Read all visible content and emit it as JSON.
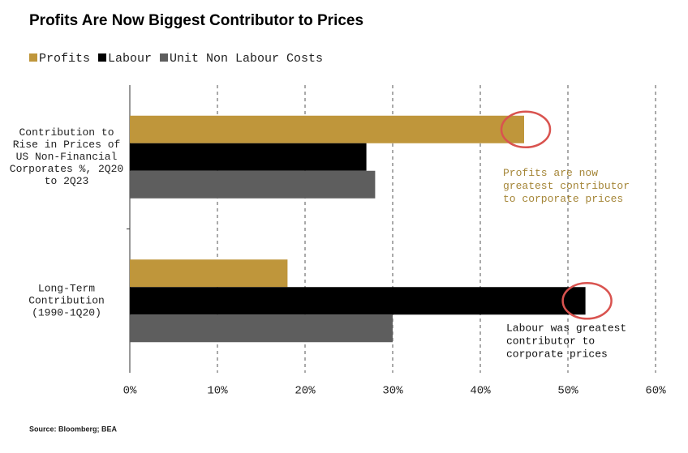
{
  "chart_data": {
    "type": "hbar",
    "title": "Profits Are Now Biggest Contributor to Prices",
    "categories": [
      "Contribution to\nRise in Prices of\nUS Non-Financial\nCorporates %, 2Q20\nto 2Q23",
      "Long-Term\nContribution\n(1990-1Q20)"
    ],
    "series": [
      {
        "name": "Profits",
        "color": "#bf963b",
        "values": [
          45,
          18
        ]
      },
      {
        "name": "Labour",
        "color": "#000000",
        "values": [
          27,
          52
        ]
      },
      {
        "name": "Unit Non Labour Costs",
        "color": "#5e5e5e",
        "values": [
          28,
          30
        ]
      }
    ],
    "xlim": [
      0,
      60
    ],
    "xticks": [
      {
        "value": 0,
        "label": "0%"
      },
      {
        "value": 10,
        "label": "10%"
      },
      {
        "value": 20,
        "label": "20%"
      },
      {
        "value": 30,
        "label": "30%"
      },
      {
        "value": 40,
        "label": "40%"
      },
      {
        "value": 50,
        "label": "50%"
      },
      {
        "value": 60,
        "label": "60%"
      }
    ],
    "grid": true,
    "annotations": [
      "Profits are now\ngreatest contributor\nto corporate prices",
      "Labour was greatest\ncontributor to\ncorporate prices"
    ],
    "source": "Source: Bloomberg; BEA"
  }
}
